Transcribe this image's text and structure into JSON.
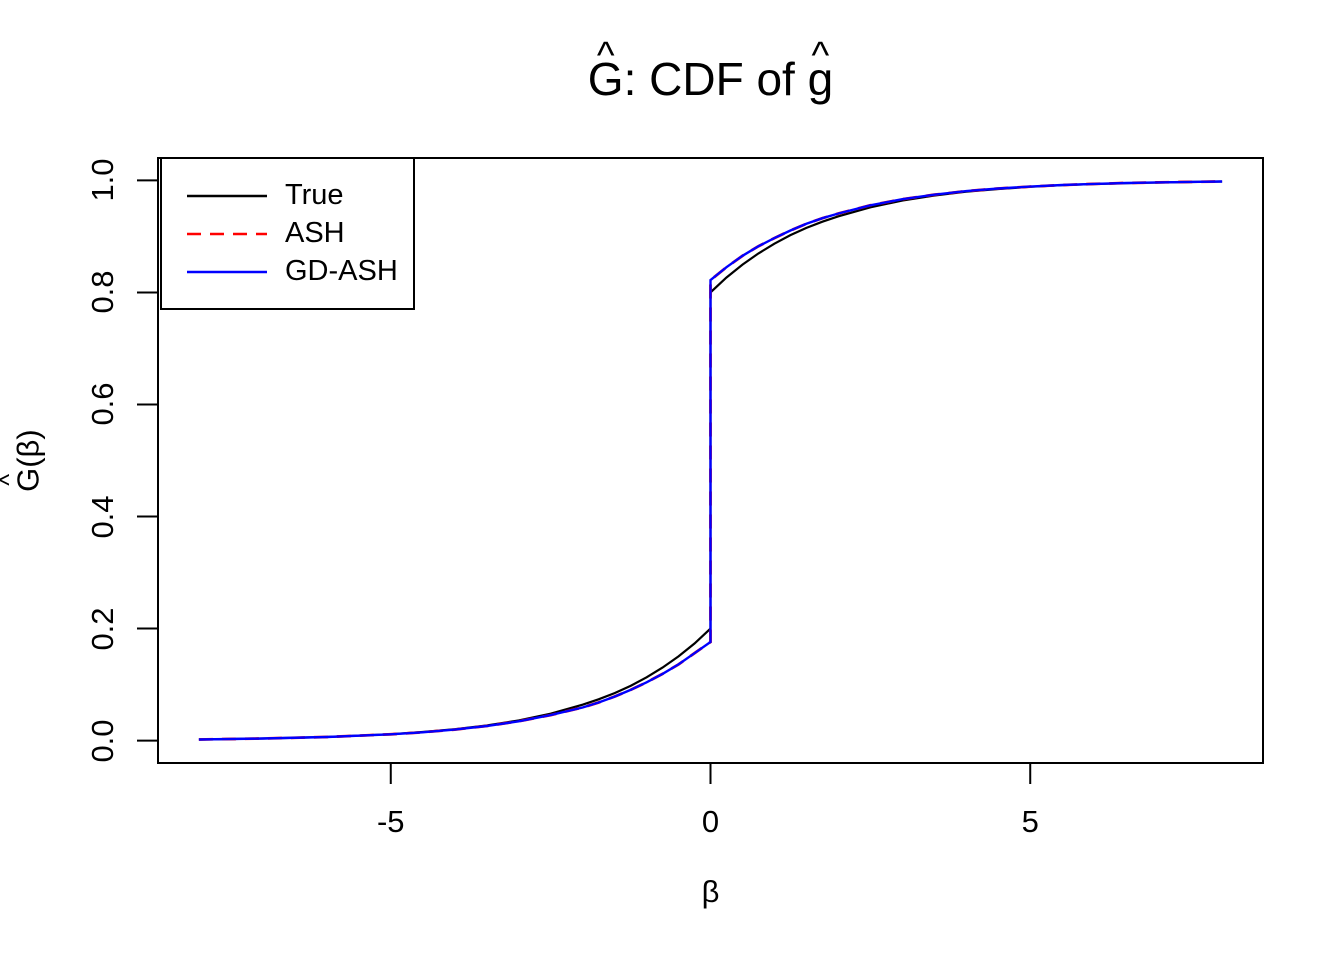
{
  "ui": {
    "title": {
      "hat": "^",
      "g1": "G",
      "mid": ": CDF of ",
      "g2": "g"
    },
    "ylabel": {
      "hat": "^",
      "g": "G",
      "rest": "(β)"
    },
    "xlabel": "β"
  },
  "legend": {
    "position": "top-left",
    "entries": [
      {
        "label": "True",
        "color": "#000000",
        "style": "solid",
        "dash": "none"
      },
      {
        "label": "ASH",
        "color": "#FF0000",
        "style": "dashed",
        "dash": "14,9"
      },
      {
        "label": "GD-ASH",
        "color": "#0000FF",
        "style": "solid",
        "dash": "none"
      }
    ]
  },
  "chart_data": {
    "type": "line",
    "title": "Ĝ: CDF of ĝ",
    "xlabel": "β",
    "ylabel": "Ĝ(β)",
    "grid": false,
    "axes": {
      "x": {
        "range": [
          -8.64,
          8.64
        ],
        "data_range": [
          -8,
          8
        ],
        "tick_values": [
          -5,
          0,
          5
        ],
        "tick_labels": [
          "-5",
          "0",
          "5"
        ]
      },
      "y": {
        "range": [
          -0.04,
          1.04
        ],
        "data_range": [
          0,
          1
        ],
        "tick_values": [
          0,
          0.2,
          0.4,
          0.6,
          0.8,
          1.0
        ],
        "tick_labels": [
          "0.0",
          "0.2",
          "0.4",
          "0.6",
          "0.8",
          "1.0"
        ]
      }
    },
    "jump_at_zero": {
      "True": [
        0.2,
        0.8
      ],
      "ASH": [
        0.176,
        0.822
      ],
      "GD-ASH": [
        0.176,
        0.822
      ]
    },
    "series": [
      {
        "name": "True",
        "color": "#000000",
        "style": "solid",
        "width": 2.2,
        "points": [
          [
            -8,
            0.002
          ],
          [
            -7,
            0.0037
          ],
          [
            -6,
            0.0065
          ],
          [
            -5,
            0.0115
          ],
          [
            -4.5,
            0.0153
          ],
          [
            -4,
            0.0203
          ],
          [
            -3.5,
            0.027
          ],
          [
            -3,
            0.036
          ],
          [
            -2.5,
            0.048
          ],
          [
            -2,
            0.064
          ],
          [
            -1.75,
            0.0737
          ],
          [
            -1.5,
            0.0847
          ],
          [
            -1.25,
            0.0977
          ],
          [
            -1,
            0.113
          ],
          [
            -0.75,
            0.1303
          ],
          [
            -0.5,
            0.1503
          ],
          [
            -0.25,
            0.1734
          ],
          [
            0,
            0.2
          ],
          [
            0,
            0.8
          ],
          [
            0.25,
            0.8266
          ],
          [
            0.5,
            0.8497
          ],
          [
            0.75,
            0.8697
          ],
          [
            1,
            0.887
          ],
          [
            1.25,
            0.9023
          ],
          [
            1.5,
            0.9153
          ],
          [
            1.75,
            0.9263
          ],
          [
            2,
            0.936
          ],
          [
            2.5,
            0.952
          ],
          [
            3,
            0.964
          ],
          [
            3.5,
            0.973
          ],
          [
            4,
            0.98
          ],
          [
            4.5,
            0.9847
          ],
          [
            5,
            0.9885
          ],
          [
            5.5,
            0.9914
          ],
          [
            6,
            0.9935
          ],
          [
            6.5,
            0.9951
          ],
          [
            7,
            0.9963
          ],
          [
            7.5,
            0.9972
          ],
          [
            8,
            0.998
          ]
        ]
      },
      {
        "name": "ASH",
        "color": "#FF0000",
        "style": "dashed",
        "width": 2.8,
        "points": [
          [
            -8,
            0.002
          ],
          [
            -7,
            0.0037
          ],
          [
            -6,
            0.0065
          ],
          [
            -5,
            0.0112
          ],
          [
            -4.5,
            0.0148
          ],
          [
            -4,
            0.0197
          ],
          [
            -3.5,
            0.026
          ],
          [
            -3,
            0.0345
          ],
          [
            -2.5,
            0.0455
          ],
          [
            -2,
            0.059
          ],
          [
            -1.75,
            0.068
          ],
          [
            -1.5,
            0.0785
          ],
          [
            -1.25,
            0.0905
          ],
          [
            -1,
            0.104
          ],
          [
            -0.75,
            0.119
          ],
          [
            -0.5,
            0.136
          ],
          [
            -0.25,
            0.156
          ],
          [
            0,
            0.176
          ],
          [
            0,
            0.822
          ],
          [
            0.25,
            0.845
          ],
          [
            0.5,
            0.8655
          ],
          [
            0.75,
            0.8825
          ],
          [
            1,
            0.897
          ],
          [
            1.25,
            0.9105
          ],
          [
            1.5,
            0.9225
          ],
          [
            1.75,
            0.9325
          ],
          [
            2,
            0.941
          ],
          [
            2.5,
            0.9555
          ],
          [
            3,
            0.9665
          ],
          [
            3.5,
            0.9745
          ],
          [
            4,
            0.981
          ],
          [
            4.5,
            0.9855
          ],
          [
            5,
            0.989
          ],
          [
            5.5,
            0.9918
          ],
          [
            6,
            0.9938
          ],
          [
            6.5,
            0.9953
          ],
          [
            7,
            0.9965
          ],
          [
            7.5,
            0.9974
          ],
          [
            8,
            0.998
          ]
        ]
      },
      {
        "name": "GD-ASH",
        "color": "#0000FF",
        "style": "solid",
        "width": 2.4,
        "points": [
          [
            -8,
            0.002
          ],
          [
            -7,
            0.0037
          ],
          [
            -6,
            0.0065
          ],
          [
            -5,
            0.0112
          ],
          [
            -4.5,
            0.0148
          ],
          [
            -4,
            0.0197
          ],
          [
            -3.5,
            0.026
          ],
          [
            -3,
            0.0345
          ],
          [
            -2.5,
            0.0455
          ],
          [
            -2,
            0.059
          ],
          [
            -1.75,
            0.068
          ],
          [
            -1.5,
            0.0785
          ],
          [
            -1.25,
            0.0905
          ],
          [
            -1,
            0.104
          ],
          [
            -0.75,
            0.119
          ],
          [
            -0.5,
            0.136
          ],
          [
            -0.25,
            0.156
          ],
          [
            0,
            0.176
          ],
          [
            0,
            0.822
          ],
          [
            0.25,
            0.845
          ],
          [
            0.5,
            0.8655
          ],
          [
            0.75,
            0.8825
          ],
          [
            1,
            0.897
          ],
          [
            1.25,
            0.9105
          ],
          [
            1.5,
            0.9225
          ],
          [
            1.75,
            0.9325
          ],
          [
            2,
            0.941
          ],
          [
            2.5,
            0.9555
          ],
          [
            3,
            0.9665
          ],
          [
            3.5,
            0.9745
          ],
          [
            4,
            0.981
          ],
          [
            4.5,
            0.9855
          ],
          [
            5,
            0.989
          ],
          [
            5.5,
            0.9918
          ],
          [
            6,
            0.9938
          ],
          [
            6.5,
            0.9953
          ],
          [
            7,
            0.9965
          ],
          [
            7.5,
            0.9974
          ],
          [
            8,
            0.998
          ]
        ]
      }
    ]
  }
}
